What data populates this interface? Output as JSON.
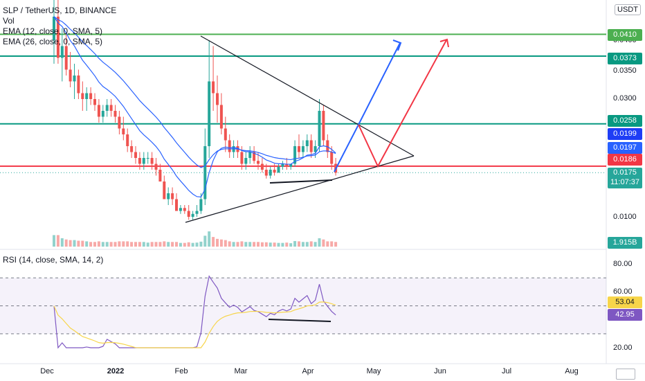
{
  "legend": {
    "symbol": "SLP / TetherUS, 1D, BINANCE",
    "vol": "Vol",
    "ema1": "EMA (12, close, 0, SMA, 5)",
    "ema2": "EMA (26, close, 0, SMA, 5)",
    "rsi": "RSI (14, close, SMA, 14, 2)"
  },
  "currency": "USDT",
  "tags": {
    "l0410": "0.0410",
    "l0373": "0.0373",
    "l0258": "0.0258",
    "ema_fast": "0.0199",
    "ema_slow": "0.0197",
    "l0186": "0.0186",
    "price": "0.0175",
    "countdown": "11:07:37",
    "volume": "1.915B",
    "rsi_ma": "53.04",
    "rsi": "42.95"
  },
  "colors": {
    "up": "#26a69a",
    "down": "#ef5350",
    "green_line": "#4caf50",
    "teal_line": "#089981",
    "red_line": "#f23645",
    "ema_blue": "#2962ff",
    "ema_fast_tag": "#1e3df5",
    "rsi_line": "#7e57c2",
    "rsi_ma": "#f7d54a",
    "arrow_blue": "#2962ff",
    "arrow_red": "#f23645"
  },
  "chart_data": {
    "type": "candlestick",
    "title": "SLP / TetherUS, 1D, BINANCE",
    "price_axis_ticks": [
      "0.0400",
      "0.0350",
      "0.0300",
      "0.0100"
    ],
    "rsi_axis_ticks": [
      "80.00",
      "60.00",
      "20.00"
    ],
    "time_axis_labels": [
      "Dec",
      "2022",
      "Feb",
      "Mar",
      "Apr",
      "May",
      "Jun",
      "Jul",
      "Aug"
    ],
    "horizontal_levels": [
      {
        "value": 0.041,
        "color": "green"
      },
      {
        "value": 0.0373,
        "color": "teal"
      },
      {
        "value": 0.0258,
        "color": "teal"
      },
      {
        "value": 0.0186,
        "color": "red"
      }
    ],
    "last_price": 0.0175,
    "ema_12": 0.0199,
    "ema_26": 0.0197,
    "rsi": 42.95,
    "rsi_ma": 53.04,
    "volume": "1.915B",
    "candles": [
      [
        0.04,
        0.05,
        0.036,
        0.044
      ],
      [
        0.044,
        0.05,
        0.036,
        0.037
      ],
      [
        0.037,
        0.042,
        0.033,
        0.039
      ],
      [
        0.039,
        0.041,
        0.034,
        0.035
      ],
      [
        0.035,
        0.038,
        0.032,
        0.033
      ],
      [
        0.033,
        0.036,
        0.03,
        0.034
      ],
      [
        0.034,
        0.035,
        0.03,
        0.031
      ],
      [
        0.031,
        0.033,
        0.028,
        0.03
      ],
      [
        0.03,
        0.032,
        0.028,
        0.031
      ],
      [
        0.031,
        0.032,
        0.029,
        0.03
      ],
      [
        0.03,
        0.031,
        0.028,
        0.029
      ],
      [
        0.029,
        0.03,
        0.026,
        0.027
      ],
      [
        0.027,
        0.029,
        0.026,
        0.028
      ],
      [
        0.028,
        0.03,
        0.027,
        0.029
      ],
      [
        0.029,
        0.03,
        0.027,
        0.028
      ],
      [
        0.028,
        0.029,
        0.026,
        0.027
      ],
      [
        0.027,
        0.028,
        0.024,
        0.025
      ],
      [
        0.025,
        0.027,
        0.023,
        0.024
      ],
      [
        0.024,
        0.025,
        0.021,
        0.022
      ],
      [
        0.022,
        0.023,
        0.02,
        0.021
      ],
      [
        0.021,
        0.022,
        0.019,
        0.02
      ],
      [
        0.02,
        0.021,
        0.018,
        0.019
      ],
      [
        0.019,
        0.021,
        0.018,
        0.02
      ],
      [
        0.02,
        0.021,
        0.019,
        0.02
      ],
      [
        0.02,
        0.021,
        0.018,
        0.019
      ],
      [
        0.019,
        0.02,
        0.017,
        0.018
      ],
      [
        0.018,
        0.019,
        0.016,
        0.016
      ],
      [
        0.016,
        0.017,
        0.013,
        0.013
      ],
      [
        0.013,
        0.015,
        0.012,
        0.014
      ],
      [
        0.014,
        0.015,
        0.012,
        0.013
      ],
      [
        0.013,
        0.014,
        0.011,
        0.011
      ],
      [
        0.011,
        0.012,
        0.0105,
        0.0115
      ],
      [
        0.0115,
        0.012,
        0.0105,
        0.011
      ],
      [
        0.011,
        0.012,
        0.0095,
        0.01
      ],
      [
        0.01,
        0.011,
        0.0095,
        0.0105
      ],
      [
        0.0105,
        0.012,
        0.01,
        0.011
      ],
      [
        0.011,
        0.014,
        0.0105,
        0.013
      ],
      [
        0.013,
        0.025,
        0.012,
        0.022
      ],
      [
        0.022,
        0.04,
        0.02,
        0.033
      ],
      [
        0.033,
        0.039,
        0.028,
        0.031
      ],
      [
        0.031,
        0.034,
        0.026,
        0.029
      ],
      [
        0.029,
        0.031,
        0.024,
        0.025
      ],
      [
        0.025,
        0.027,
        0.021,
        0.023
      ],
      [
        0.023,
        0.024,
        0.02,
        0.021
      ],
      [
        0.021,
        0.023,
        0.02,
        0.022
      ],
      [
        0.022,
        0.023,
        0.02,
        0.021
      ],
      [
        0.021,
        0.022,
        0.018,
        0.019
      ],
      [
        0.019,
        0.021,
        0.018,
        0.02
      ],
      [
        0.02,
        0.022,
        0.019,
        0.021
      ],
      [
        0.021,
        0.022,
        0.019,
        0.0195
      ],
      [
        0.0195,
        0.021,
        0.018,
        0.019
      ],
      [
        0.019,
        0.02,
        0.0175,
        0.018
      ],
      [
        0.018,
        0.019,
        0.0165,
        0.017
      ],
      [
        0.017,
        0.0185,
        0.0165,
        0.018
      ],
      [
        0.018,
        0.019,
        0.017,
        0.0175
      ],
      [
        0.0175,
        0.019,
        0.0175,
        0.0185
      ],
      [
        0.0185,
        0.0195,
        0.018,
        0.019
      ],
      [
        0.019,
        0.02,
        0.018,
        0.0185
      ],
      [
        0.0185,
        0.019,
        0.018,
        0.019
      ],
      [
        0.019,
        0.023,
        0.0185,
        0.022
      ],
      [
        0.022,
        0.024,
        0.02,
        0.021
      ],
      [
        0.021,
        0.023,
        0.02,
        0.022
      ],
      [
        0.022,
        0.024,
        0.021,
        0.023
      ],
      [
        0.023,
        0.024,
        0.02,
        0.021
      ],
      [
        0.021,
        0.023,
        0.02,
        0.022
      ],
      [
        0.022,
        0.03,
        0.021,
        0.028
      ],
      [
        0.028,
        0.029,
        0.022,
        0.023
      ],
      [
        0.023,
        0.024,
        0.02,
        0.021
      ],
      [
        0.021,
        0.022,
        0.018,
        0.019
      ],
      [
        0.019,
        0.02,
        0.017,
        0.0175
      ]
    ]
  }
}
